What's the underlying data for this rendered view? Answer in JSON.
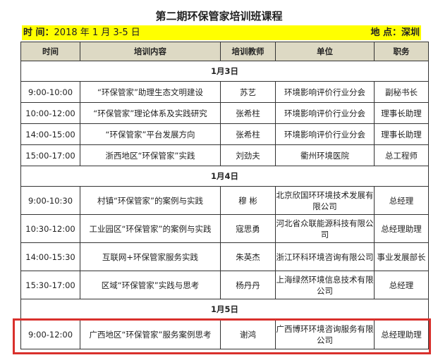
{
  "title": "第二期环保管家培训班课程",
  "info": {
    "time_label": "时 间：",
    "time_value": "2018 年 1 月 3-5 日",
    "place_label": "地 点：",
    "place_value": "深圳"
  },
  "headers": [
    "时间",
    "培训内容",
    "培训教师",
    "单位",
    "职务"
  ],
  "days": [
    {
      "date": "1月3日",
      "rows": [
        [
          "9:00-10:00",
          "“环保管家”助理生态文明建设",
          "苏艺",
          "环境影响评价行业分会",
          "副秘书长"
        ],
        [
          "10:00-12:00",
          "“环保管家”理论体系及实践研究",
          "张希柱",
          "环境影响评价行业分会",
          "理事长助理"
        ],
        [
          "14:00-15:00",
          "“环保管家”平台发展方向",
          "张希柱",
          "环境影响评价行业分会",
          "理事长助理"
        ],
        [
          "15:00-17:00",
          "浙西地区“环保管家”实践",
          "刘劲夫",
          "衢州环境医院",
          "总工程师"
        ]
      ]
    },
    {
      "date": "1月4日",
      "rows": [
        [
          "9:00-10:30",
          "村镇“环保管家”的案例与实践",
          "穆 彬",
          "北京欣国环环境技术发展有限公司",
          "总经理"
        ],
        [
          "10:30-12:00",
          "工业园区“环保管家”的案例与实践",
          "寇思勇",
          "河北省众联能源科技有限公司",
          "总经理助理"
        ],
        [
          "14:00-15:30",
          "互联网+环保管家服务实践",
          "朱英杰",
          "浙江环科环境咨询有限公司",
          "事业发展部长"
        ],
        [
          "15:30-17:00",
          "区域“环保管家”实践与思考",
          "杨丹丹",
          "上海绿然环境信息技术有限公司",
          "总经理"
        ]
      ]
    },
    {
      "date": "1月5日",
      "rows": [
        [
          "9:00-12:00",
          "广西地区“环保管家”服务案例思考",
          "谢鸿",
          "广西博环环境咨询服务有限公司",
          "总经理助理"
        ]
      ]
    }
  ],
  "highlight_color": "#d9302c",
  "bar_color": "#ffff00",
  "header_bg": "#ddd9c4"
}
